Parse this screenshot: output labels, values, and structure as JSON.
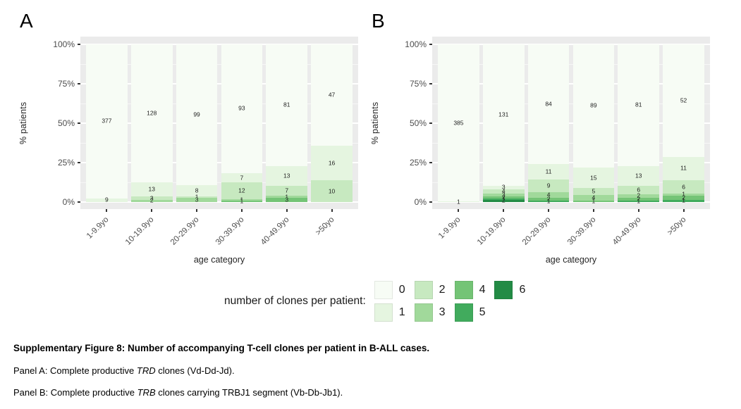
{
  "accent_colors": {
    "panel_background": "#ebebeb",
    "gridline": "#ffffff",
    "tick": "#333333",
    "axis_text": "#4d4d4d"
  },
  "legend": {
    "title": "number of clones per patient:",
    "entries": [
      {
        "label": "0",
        "color": "#f7fcf5"
      },
      {
        "label": "1",
        "color": "#e5f5e0"
      },
      {
        "label": "2",
        "color": "#c7e9c0"
      },
      {
        "label": "3",
        "color": "#a1d99b"
      },
      {
        "label": "4",
        "color": "#74c476"
      },
      {
        "label": "5",
        "color": "#41ab5d"
      },
      {
        "label": "6",
        "color": "#238b45"
      }
    ]
  },
  "caption": {
    "title": "Supplementary Figure 8: Number of accompanying T-cell clones per patient in B-ALL cases.",
    "lines": [
      {
        "parts": [
          {
            "text": "Panel A: Complete productive ",
            "italic": false
          },
          {
            "text": "TRD",
            "italic": true
          },
          {
            "text": " clones (Vd-Dd-Jd).",
            "italic": false
          }
        ]
      },
      {
        "parts": [
          {
            "text": "Panel B: Complete productive ",
            "italic": false
          },
          {
            "text": "TRB",
            "italic": true
          },
          {
            "text": " clones carrying TRBJ1 segment (Vb-Db-Jb1).",
            "italic": false
          }
        ]
      }
    ]
  },
  "chart_data": [
    {
      "type": "bar",
      "stacked": true,
      "normalized": "percent",
      "panel_label": "A",
      "categories": [
        "1-9.9yo",
        "10-19.9yo",
        "20-29.9yo",
        "30-39.9yo",
        "40-49.9yo",
        ">50yo"
      ],
      "xlabel": "age category",
      "ylabel": "% patients",
      "ylim": [
        0,
        100
      ],
      "y_ticks": [
        "0%",
        "25%",
        "50%",
        "75%",
        "100%"
      ],
      "grid": true,
      "legend_position": "bottom",
      "series": [
        {
          "name": "0",
          "color": "#f7fcf5",
          "values": [
            377,
            128,
            99,
            93,
            81,
            47
          ]
        },
        {
          "name": "1",
          "color": "#e5f5e0",
          "values": [
            9,
            13,
            8,
            7,
            13,
            16
          ]
        },
        {
          "name": "2",
          "color": "#c7e9c0",
          "values": [
            0,
            3,
            1,
            12,
            7,
            10
          ]
        },
        {
          "name": "3",
          "color": "#a1d99b",
          "values": [
            0,
            2,
            3,
            1,
            1,
            0
          ]
        },
        {
          "name": "4",
          "color": "#74c476",
          "values": [
            0,
            0,
            0,
            1,
            3,
            0
          ]
        },
        {
          "name": "5",
          "color": "#41ab5d",
          "values": [
            0,
            0,
            0,
            0,
            0,
            0
          ]
        },
        {
          "name": "6",
          "color": "#238b45",
          "values": [
            0,
            0,
            0,
            0,
            0,
            0
          ]
        }
      ]
    },
    {
      "type": "bar",
      "stacked": true,
      "normalized": "percent",
      "panel_label": "B",
      "categories": [
        "1-9.9yo",
        "10-19.9yo",
        "20-29.9yo",
        "30-39.9yo",
        "40-49.9yo",
        ">50yo"
      ],
      "xlabel": "age category",
      "ylabel": "% patients",
      "ylim": [
        0,
        100
      ],
      "y_ticks": [
        "0%",
        "25%",
        "50%",
        "75%",
        "100%"
      ],
      "grid": true,
      "legend_position": "bottom",
      "series": [
        {
          "name": "0",
          "color": "#f7fcf5",
          "values": [
            385,
            131,
            84,
            89,
            81,
            52
          ]
        },
        {
          "name": "1",
          "color": "#e5f5e0",
          "values": [
            1,
            3,
            11,
            15,
            13,
            11
          ]
        },
        {
          "name": "2",
          "color": "#c7e9c0",
          "values": [
            0,
            4,
            9,
            5,
            6,
            6
          ]
        },
        {
          "name": "3",
          "color": "#a1d99b",
          "values": [
            0,
            3,
            4,
            4,
            2,
            1
          ]
        },
        {
          "name": "4",
          "color": "#74c476",
          "values": [
            0,
            2,
            2,
            1,
            2,
            2
          ]
        },
        {
          "name": "5",
          "color": "#41ab5d",
          "values": [
            0,
            1,
            1,
            0,
            1,
            1
          ]
        },
        {
          "name": "6",
          "color": "#238b45",
          "values": [
            0,
            2,
            0,
            0,
            0,
            0
          ]
        }
      ]
    }
  ]
}
